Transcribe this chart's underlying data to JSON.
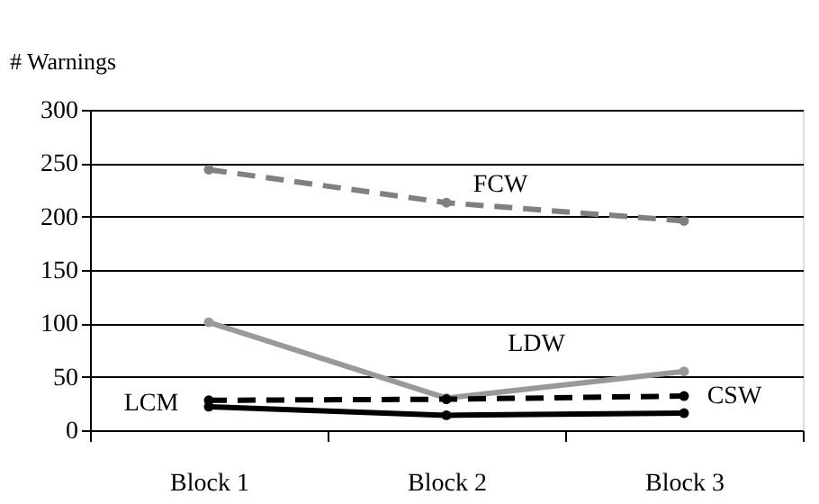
{
  "chart_data": {
    "type": "line",
    "ylabel": "# Warnings",
    "categories": [
      "Block 1",
      "Block 2",
      "Block 3"
    ],
    "series": [
      {
        "name": "FCW",
        "color": "#808080",
        "line_style": "dashed",
        "values": [
          244,
          213,
          196
        ]
      },
      {
        "name": "LDW",
        "color": "#999999",
        "line_style": "solid",
        "values": [
          101,
          30,
          55
        ]
      },
      {
        "name": "CSW",
        "color": "#000000",
        "line_style": "dashed",
        "values": [
          28,
          29,
          32
        ]
      },
      {
        "name": "LCM",
        "color": "#000000",
        "line_style": "solid",
        "values": [
          22,
          14,
          16
        ]
      }
    ],
    "ylim": [
      0,
      300
    ],
    "yticks": [
      0,
      50,
      100,
      150,
      200,
      250,
      300
    ],
    "grid": "y",
    "marker": "circle"
  }
}
